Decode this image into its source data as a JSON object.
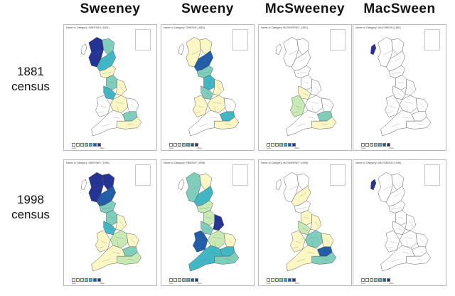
{
  "columns": [
    {
      "id": "sweeney",
      "title": "Sweeney",
      "surname_code": "SWEENEY"
    },
    {
      "id": "sweeny",
      "title": "Sweeny",
      "surname_code": "SWEENY"
    },
    {
      "id": "mcsweeney",
      "title": "McSweeney",
      "surname_code": "MCSWEENEY"
    },
    {
      "id": "macsween",
      "title": "MacSween",
      "surname_code": "MACSWEEN"
    }
  ],
  "rows": [
    {
      "id": "1881",
      "label_line1": "1881",
      "label_line2": "census",
      "year": "1881"
    },
    {
      "id": "1998",
      "label_line1": "1998",
      "label_line2": "census",
      "year": "1998"
    }
  ],
  "caption_prefix": "Name or Category:",
  "legend": {
    "colors": [
      "#ffffff",
      "#fbf7c4",
      "#c7e9b4",
      "#7fcdbb",
      "#41b6c4",
      "#225ea8",
      "#253494"
    ],
    "low_label": "Less",
    "high_label": "More"
  },
  "shading_levels": {
    "sweeney_1881": {
      "west_highlands": 6,
      "east_highlands": 3,
      "central_belt": 4,
      "borders": 1,
      "north_england": 3,
      "yorkshire": 1,
      "lancashire": 4,
      "midlands": 1,
      "wales": 0,
      "east_anglia": 0,
      "london": 3,
      "south_east": 1,
      "south_west": 0
    },
    "sweeny_1881": {
      "west_highlands": 1,
      "east_highlands": 1,
      "central_belt": 5,
      "borders": 3,
      "north_england": 4,
      "yorkshire": 1,
      "lancashire": 3,
      "midlands": 1,
      "wales": 1,
      "east_anglia": 0,
      "london": 4,
      "south_east": 1,
      "south_west": 0
    },
    "mcsweeney_1881": {
      "west_highlands": 0,
      "east_highlands": 0,
      "central_belt": 0,
      "borders": 0,
      "north_england": 0,
      "yorkshire": 0,
      "lancashire": 1,
      "midlands": 0,
      "wales": 2,
      "east_anglia": 0,
      "london": 3,
      "south_east": 1,
      "south_west": 0
    },
    "macsween_1881": {
      "west_highlands": 0,
      "east_highlands": 0,
      "central_belt": 0,
      "borders": 0,
      "north_england": 0,
      "yorkshire": 0,
      "lancashire": 0,
      "midlands": 0,
      "wales": 0,
      "east_anglia": 0,
      "london": 0,
      "south_east": 0,
      "south_west": 0,
      "outer_hebrides": 6
    },
    "sweeney_1998": {
      "west_highlands": 6,
      "east_highlands": 6,
      "central_belt": 5,
      "borders": 3,
      "north_england": 3,
      "yorkshire": 1,
      "lancashire": 4,
      "midlands": 2,
      "wales": 1,
      "east_anglia": 1,
      "london": 3,
      "south_east": 2,
      "south_west": 1
    },
    "sweeny_1998": {
      "west_highlands": 3,
      "east_highlands": 1,
      "central_belt": 4,
      "borders": 2,
      "north_england": 2,
      "yorkshire": 6,
      "lancashire": 3,
      "midlands": 2,
      "wales": 5,
      "east_anglia": 1,
      "london": 4,
      "south_east": 3,
      "south_west": 4
    },
    "mcsweeney_1998": {
      "west_highlands": 0,
      "east_highlands": 0,
      "central_belt": 1,
      "borders": 0,
      "north_england": 1,
      "yorkshire": 1,
      "lancashire": 2,
      "midlands": 3,
      "wales": 1,
      "east_anglia": 1,
      "london": 5,
      "south_east": 3,
      "south_west": 1
    },
    "macsween_1998": {
      "west_highlands": 0,
      "east_highlands": 0,
      "central_belt": 0,
      "borders": 0,
      "north_england": 0,
      "yorkshire": 0,
      "lancashire": 0,
      "midlands": 0,
      "wales": 0,
      "east_anglia": 0,
      "london": 0,
      "south_east": 0,
      "south_west": 0,
      "outer_hebrides": 6
    }
  }
}
